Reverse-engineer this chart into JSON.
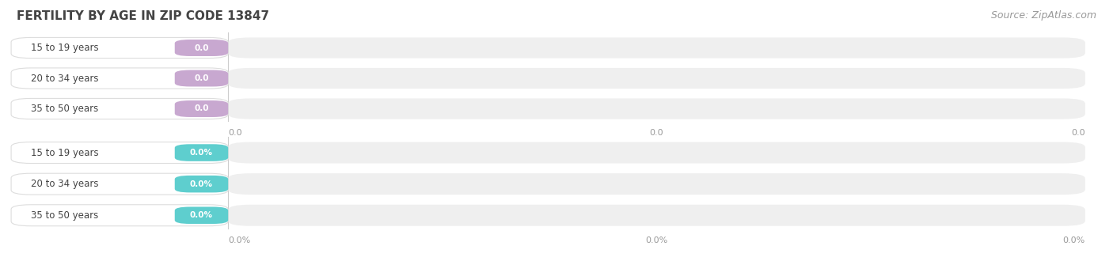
{
  "title": "FERTILITY BY AGE IN ZIP CODE 13847",
  "source": "Source: ZipAtlas.com",
  "categories": [
    "15 to 19 years",
    "20 to 34 years",
    "35 to 50 years"
  ],
  "group1_values": [
    0.0,
    0.0,
    0.0
  ],
  "group2_values": [
    0.0,
    0.0,
    0.0
  ],
  "group1_label_suffix": "",
  "group2_label_suffix": "%",
  "group1_bar_color": "#c8a8d0",
  "group2_bar_color": "#5ecece",
  "bar_bg_color": "#efefef",
  "category_label_color": "#444444",
  "axis_label_color": "#999999",
  "title_color": "#444444",
  "source_color": "#999999",
  "title_fontsize": 11,
  "source_fontsize": 9,
  "background_color": "#ffffff",
  "tick_labels_group1": [
    "0.0",
    "0.0",
    "0.0"
  ],
  "tick_labels_group2": [
    "0.0%",
    "0.0%",
    "0.0%"
  ]
}
